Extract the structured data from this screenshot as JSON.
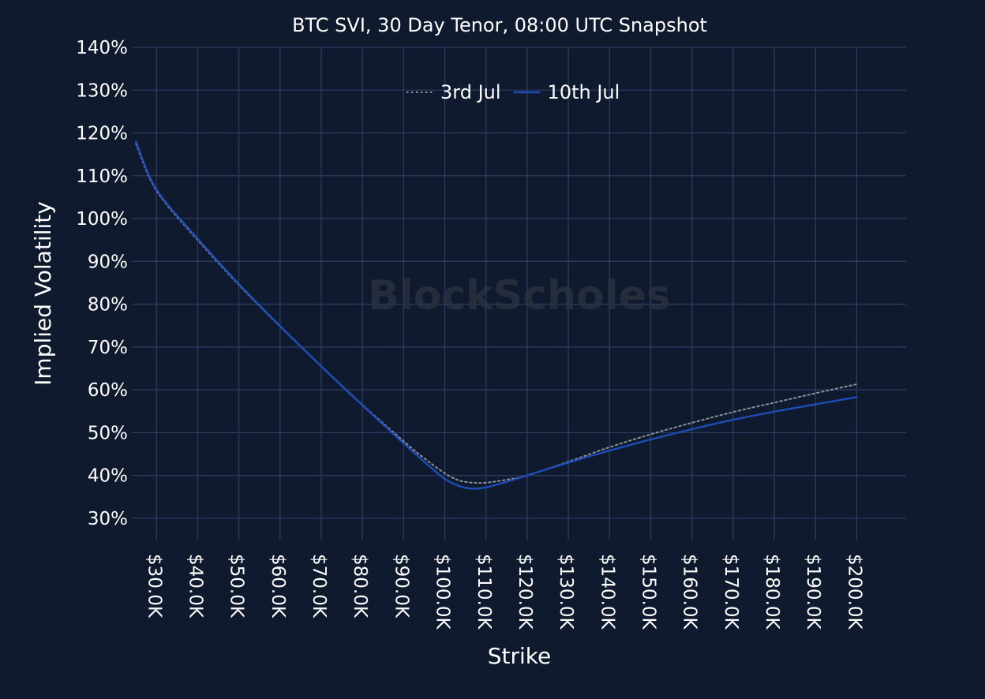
{
  "chart_data": {
    "type": "line",
    "title": "BTC SVI, 30 Day Tenor, 08:00 UTC Snapshot",
    "xlabel": "Strike",
    "ylabel": "Implied Volatility",
    "watermark": "BlockScholes",
    "x_unit": "USD",
    "xlim": [
      24000,
      212000
    ],
    "ylim": [
      25,
      140
    ],
    "x_ticks": [
      30000,
      40000,
      50000,
      60000,
      70000,
      80000,
      90000,
      100000,
      110000,
      120000,
      130000,
      140000,
      150000,
      160000,
      170000,
      180000,
      190000,
      200000
    ],
    "x_tick_labels": [
      "$30.0K",
      "$40.0K",
      "$50.0K",
      "$60.0K",
      "$70.0K",
      "$80.0K",
      "$90.0K",
      "$100.0K",
      "$110.0K",
      "$120.0K",
      "$130.0K",
      "$140.0K",
      "$150.0K",
      "$160.0K",
      "$170.0K",
      "$180.0K",
      "$190.0K",
      "$200.0K"
    ],
    "y_ticks": [
      30,
      40,
      50,
      60,
      70,
      80,
      90,
      100,
      110,
      120,
      130,
      140
    ],
    "y_tick_labels": [
      "30%",
      "40%",
      "50%",
      "60%",
      "70%",
      "80%",
      "90%",
      "100%",
      "110%",
      "120%",
      "130%",
      "140%"
    ],
    "grid": true,
    "legend_position": "top-center",
    "series": [
      {
        "name": "3rd Jul",
        "style": "dotted",
        "color": "#8a8f98",
        "x": [
          25000,
          30000,
          40000,
          50000,
          60000,
          70000,
          80000,
          90000,
          95000,
          100000,
          103000,
          105000,
          107000,
          110000,
          115000,
          120000,
          130000,
          140000,
          150000,
          160000,
          170000,
          180000,
          190000,
          200000
        ],
        "y": [
          117.5,
          106.5,
          95.0,
          84.5,
          74.8,
          65.5,
          56.5,
          48.0,
          44.0,
          40.5,
          39.0,
          38.5,
          38.3,
          38.3,
          39.0,
          40.0,
          43.2,
          46.6,
          49.6,
          52.3,
          54.8,
          57.0,
          59.2,
          61.3
        ]
      },
      {
        "name": "10th Jul",
        "style": "solid",
        "color": "#1e4db7",
        "x": [
          25000,
          30000,
          40000,
          50000,
          60000,
          70000,
          80000,
          90000,
          95000,
          100000,
          103000,
          105000,
          107000,
          110000,
          115000,
          120000,
          130000,
          140000,
          150000,
          160000,
          170000,
          180000,
          190000,
          200000
        ],
        "y": [
          118.0,
          106.8,
          95.3,
          84.7,
          74.9,
          65.5,
          56.4,
          47.5,
          43.2,
          39.2,
          37.7,
          37.1,
          36.9,
          37.2,
          38.5,
          40.0,
          43.0,
          45.8,
          48.4,
          50.8,
          53.0,
          54.9,
          56.6,
          58.3
        ]
      }
    ]
  }
}
